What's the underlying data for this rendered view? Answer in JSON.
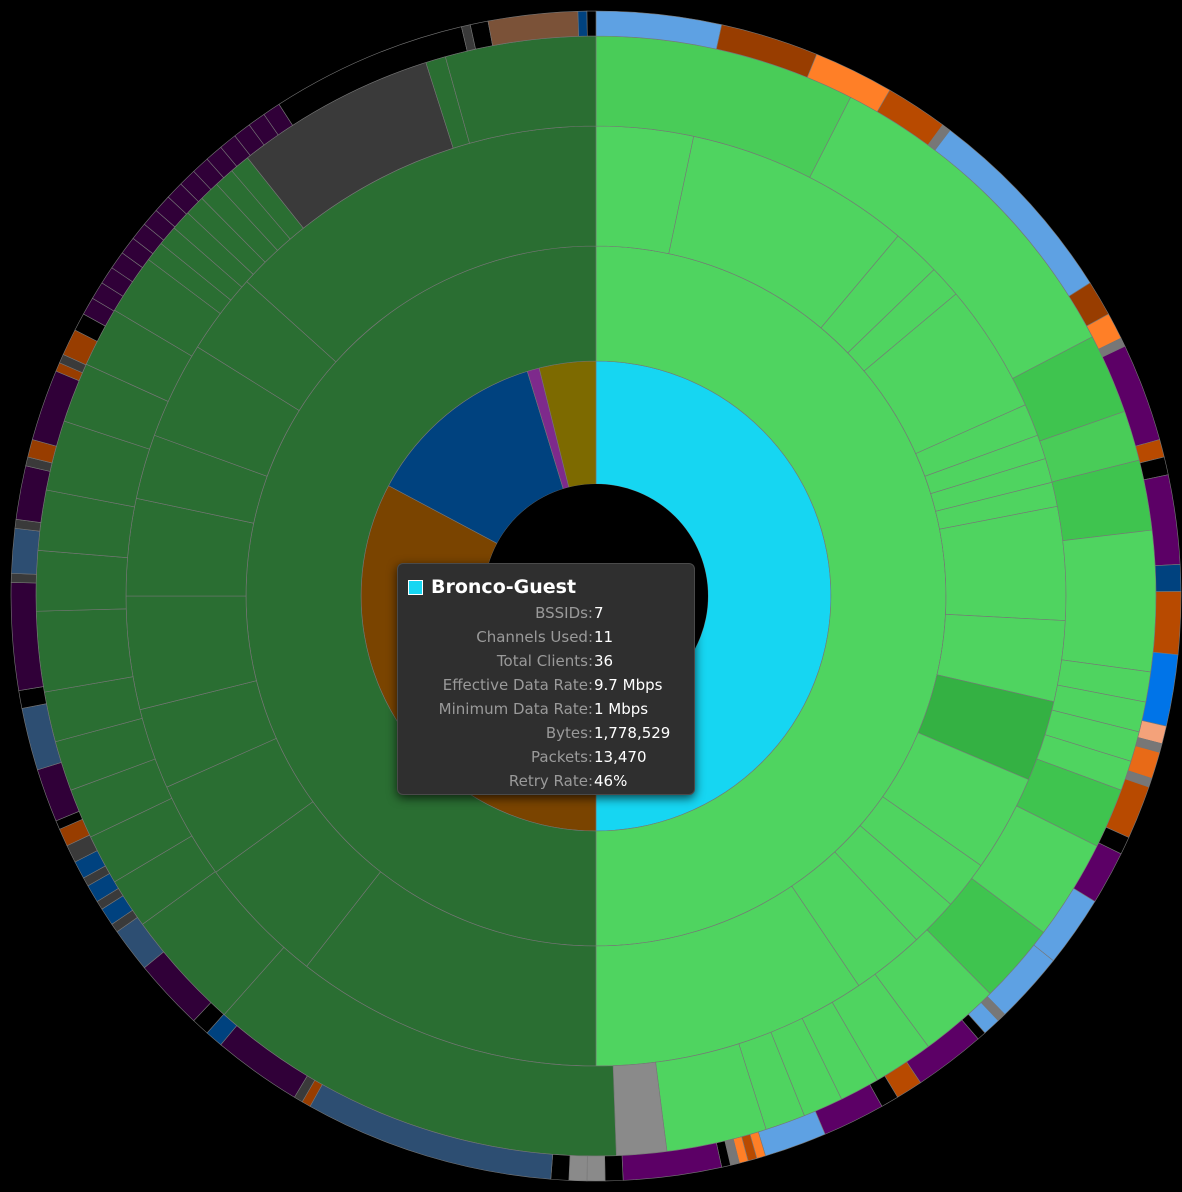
{
  "chart_data": {
    "type": "sunburst",
    "rings": [
      [
        {
          "color": "#16d6f2",
          "value": 180
        },
        {
          "color": "#7a4400",
          "value": 118
        },
        {
          "color": "#00427f",
          "value": 45
        },
        {
          "color": "#7e2a8c",
          "value": 3
        },
        {
          "color": "#7d6a00",
          "value": 14
        }
      ],
      [
        {
          "color": "#4fd460",
          "value": 180
        },
        {
          "color": "#2a6e32",
          "value": 180
        }
      ],
      [
        {
          "color": "#4fd460",
          "value": 12
        },
        {
          "color": "#4fd460",
          "value": 28
        },
        {
          "color": "#4fd460",
          "value": 6
        },
        {
          "color": "#4fd460",
          "value": 4
        },
        {
          "color": "#4fd460",
          "value": 16
        },
        {
          "color": "#4fd460",
          "value": 4
        },
        {
          "color": "#4fd460",
          "value": 3
        },
        {
          "color": "#4fd460",
          "value": 3
        },
        {
          "color": "#4fd460",
          "value": 3
        },
        {
          "color": "#4fd460",
          "value": 14
        },
        {
          "color": "#4fd460",
          "value": 10
        },
        {
          "color": "#34b143",
          "value": 10
        },
        {
          "color": "#4fd460",
          "value": 12
        },
        {
          "color": "#4fd460",
          "value": 6
        },
        {
          "color": "#4fd460",
          "value": 6
        },
        {
          "color": "#4fd460",
          "value": 9
        },
        {
          "color": "#4fd460",
          "value": 34
        },
        {
          "color": "#2a6e32",
          "value": 38
        },
        {
          "color": "#2a6e32",
          "value": 16
        },
        {
          "color": "#2a6e32",
          "value": 12
        },
        {
          "color": "#2a6e32",
          "value": 10
        },
        {
          "color": "#2a6e32",
          "value": 14
        },
        {
          "color": "#2a6e32",
          "value": 12
        },
        {
          "color": "#2a6e32",
          "value": 8
        },
        {
          "color": "#2a6e32",
          "value": 12
        },
        {
          "color": "#2a6e32",
          "value": 10
        },
        {
          "color": "#2a6e32",
          "value": 48
        }
      ],
      [
        {
          "color": "#49cc58",
          "value": 26
        },
        {
          "color": "#4fd460",
          "value": 34
        },
        {
          "color": "#3fc44f",
          "value": 8
        },
        {
          "color": "#49cc58",
          "value": 5
        },
        {
          "color": "#3fc44f",
          "value": 7
        },
        {
          "color": "#4fd460",
          "value": 14
        },
        {
          "color": "#4fd460",
          "value": 3
        },
        {
          "color": "#4fd460",
          "value": 3
        },
        {
          "color": "#4fd460",
          "value": 3
        },
        {
          "color": "#4fd460",
          "value": 3
        },
        {
          "color": "#3fc44f",
          "value": 6
        },
        {
          "color": "#4fd460",
          "value": 10
        },
        {
          "color": "#3fc44f",
          "value": 8
        },
        {
          "color": "#4fd460",
          "value": 8
        },
        {
          "color": "#4fd460",
          "value": 6
        },
        {
          "color": "#4fd460",
          "value": 4
        },
        {
          "color": "#4fd460",
          "value": 4
        },
        {
          "color": "#4fd460",
          "value": 4
        },
        {
          "color": "#4fd460",
          "value": 10
        },
        {
          "color": "#8a8a8a",
          "value": 5
        },
        {
          "color": "#2a6e32",
          "value": 42
        },
        {
          "color": "#2a6e32",
          "value": 12
        },
        {
          "color": "#2a6e32",
          "value": 5
        },
        {
          "color": "#2a6e32",
          "value": 5
        },
        {
          "color": "#2a6e32",
          "value": 5
        },
        {
          "color": "#2a6e32",
          "value": 5
        },
        {
          "color": "#2a6e32",
          "value": 5
        },
        {
          "color": "#2a6e32",
          "value": 8
        },
        {
          "color": "#2a6e32",
          "value": 6
        },
        {
          "color": "#2a6e32",
          "value": 6
        },
        {
          "color": "#2a6e32",
          "value": 7
        },
        {
          "color": "#2a6e32",
          "value": 6
        },
        {
          "color": "#2a6e32",
          "value": 6
        },
        {
          "color": "#2a6e32",
          "value": 6
        },
        {
          "color": "#2a6e32",
          "value": 2
        },
        {
          "color": "#2a6e32",
          "value": 2
        },
        {
          "color": "#2a6e32",
          "value": 2
        },
        {
          "color": "#2a6e32",
          "value": 2
        },
        {
          "color": "#2a6e32",
          "value": 2
        },
        {
          "color": "#2a6e32",
          "value": 2
        },
        {
          "color": "#2a6e32",
          "value": 2
        },
        {
          "color": "#3a3a3a",
          "value": 20
        },
        {
          "color": "#2a6e32",
          "value": 2
        },
        {
          "color": "#2a6e32",
          "value": 15
        }
      ],
      [
        {
          "color": "#5ea1e3",
          "value": 14
        },
        {
          "color": "#983d00",
          "value": 11
        },
        {
          "color": "#ff7f27",
          "value": 9
        },
        {
          "color": "#b84a00",
          "value": 7
        },
        {
          "color": "#777777",
          "value": 1
        },
        {
          "color": "#5ea1e3",
          "value": 23
        },
        {
          "color": "#983d00",
          "value": 4
        },
        {
          "color": "#ff7f27",
          "value": 3
        },
        {
          "color": "#777777",
          "value": 1
        },
        {
          "color": "#5c0066",
          "value": 11
        },
        {
          "color": "#b84a00",
          "value": 2
        },
        {
          "color": "#000000",
          "value": 2
        },
        {
          "color": "#5c0066",
          "value": 10
        },
        {
          "color": "#00427f",
          "value": 3
        },
        {
          "color": "#b84a00",
          "value": 7
        },
        {
          "color": "#0074e8",
          "value": 8
        },
        {
          "color": "#f4a27a",
          "value": 2
        },
        {
          "color": "#777777",
          "value": 1
        },
        {
          "color": "#e86a17",
          "value": 3
        },
        {
          "color": "#777777",
          "value": 1
        },
        {
          "color": "#b84a00",
          "value": 6
        },
        {
          "color": "#000000",
          "value": 2
        },
        {
          "color": "#5c0066",
          "value": 6
        },
        {
          "color": "#5ea1e3",
          "value": 8
        },
        {
          "color": "#5ea1e3",
          "value": 8
        },
        {
          "color": "#777777",
          "value": 1
        },
        {
          "color": "#5ea1e3",
          "value": 2
        },
        {
          "color": "#000000",
          "value": 1
        },
        {
          "color": "#5c0066",
          "value": 8
        },
        {
          "color": "#b84a00",
          "value": 3
        },
        {
          "color": "#000000",
          "value": 2
        },
        {
          "color": "#5c0066",
          "value": 7
        },
        {
          "color": "#5ea1e3",
          "value": 7
        },
        {
          "color": "#ff7f27",
          "value": 1
        },
        {
          "color": "#b84a00",
          "value": 1
        },
        {
          "color": "#ff7f27",
          "value": 1
        },
        {
          "color": "#777777",
          "value": 1
        },
        {
          "color": "#000000",
          "value": 1
        },
        {
          "color": "#5c0066",
          "value": 11
        },
        {
          "color": "#000000",
          "value": 2
        },
        {
          "color": "#8a8a8a",
          "value": 2
        },
        {
          "color": "#8a8a8a",
          "value": 2
        },
        {
          "color": "#000000",
          "value": 2
        },
        {
          "color": "#2d4e72",
          "value": 28
        },
        {
          "color": "#983d00",
          "value": 1
        },
        {
          "color": "#3a3a3a",
          "value": 1
        },
        {
          "color": "#300038",
          "value": 10
        },
        {
          "color": "#00427f",
          "value": 2
        },
        {
          "color": "#000000",
          "value": 2
        },
        {
          "color": "#300038",
          "value": 8
        },
        {
          "color": "#2d4e72",
          "value": 5
        },
        {
          "color": "#3a3a3a",
          "value": 1
        },
        {
          "color": "#00427f",
          "value": 2
        },
        {
          "color": "#3a3a3a",
          "value": 1
        },
        {
          "color": "#00427f",
          "value": 2
        },
        {
          "color": "#3a3a3a",
          "value": 1
        },
        {
          "color": "#00427f",
          "value": 2
        },
        {
          "color": "#3a3a3a",
          "value": 2
        },
        {
          "color": "#983d00",
          "value": 2
        },
        {
          "color": "#000000",
          "value": 1
        },
        {
          "color": "#300038",
          "value": 6
        },
        {
          "color": "#2d4e72",
          "value": 7
        },
        {
          "color": "#000000",
          "value": 2
        },
        {
          "color": "#300038",
          "value": 12
        },
        {
          "color": "#3a3a3a",
          "value": 1
        },
        {
          "color": "#2d4e72",
          "value": 5
        },
        {
          "color": "#3a3a3a",
          "value": 1
        },
        {
          "color": "#300038",
          "value": 6
        },
        {
          "color": "#3a3a3a",
          "value": 1
        },
        {
          "color": "#983d00",
          "value": 2
        },
        {
          "color": "#300038",
          "value": 8
        },
        {
          "color": "#983d00",
          "value": 1
        },
        {
          "color": "#3a3a3a",
          "value": 1
        },
        {
          "color": "#983d00",
          "value": 3
        },
        {
          "color": "#000000",
          "value": 2
        },
        {
          "color": "#300038",
          "value": 2
        },
        {
          "color": "#300038",
          "value": 2
        },
        {
          "color": "#300038",
          "value": 2
        },
        {
          "color": "#300038",
          "value": 2
        },
        {
          "color": "#300038",
          "value": 2
        },
        {
          "color": "#300038",
          "value": 2
        },
        {
          "color": "#300038",
          "value": 2
        },
        {
          "color": "#300038",
          "value": 2
        },
        {
          "color": "#300038",
          "value": 2
        },
        {
          "color": "#300038",
          "value": 2
        },
        {
          "color": "#300038",
          "value": 2
        },
        {
          "color": "#300038",
          "value": 2
        },
        {
          "color": "#300038",
          "value": 2
        },
        {
          "color": "#300038",
          "value": 2
        },
        {
          "color": "#300038",
          "value": 2
        },
        {
          "color": "#300038",
          "value": 2
        },
        {
          "color": "#000000",
          "value": 22
        },
        {
          "color": "#3a3a3a",
          "value": 1
        },
        {
          "color": "#000000",
          "value": 2
        },
        {
          "color": "#7b5238",
          "value": 10
        },
        {
          "color": "#00427f",
          "value": 1
        },
        {
          "color": "#000000",
          "value": 1
        }
      ]
    ]
  },
  "tooltip": {
    "title": "Bronco-Guest",
    "swatch_color": "#16d6f2",
    "rows": [
      {
        "label": "BSSIDs:",
        "value": "7"
      },
      {
        "label": "Channels Used:",
        "value": "11"
      },
      {
        "label": "Total Clients:",
        "value": "36"
      },
      {
        "label": "Effective Data Rate:",
        "value": "9.7 Mbps"
      },
      {
        "label": "Minimum Data Rate:",
        "value": "1 Mbps"
      },
      {
        "label": "Bytes:",
        "value": "1,778,529"
      },
      {
        "label": "Packets:",
        "value": "13,470"
      },
      {
        "label": "Retry Rate:",
        "value": "46%"
      }
    ]
  }
}
